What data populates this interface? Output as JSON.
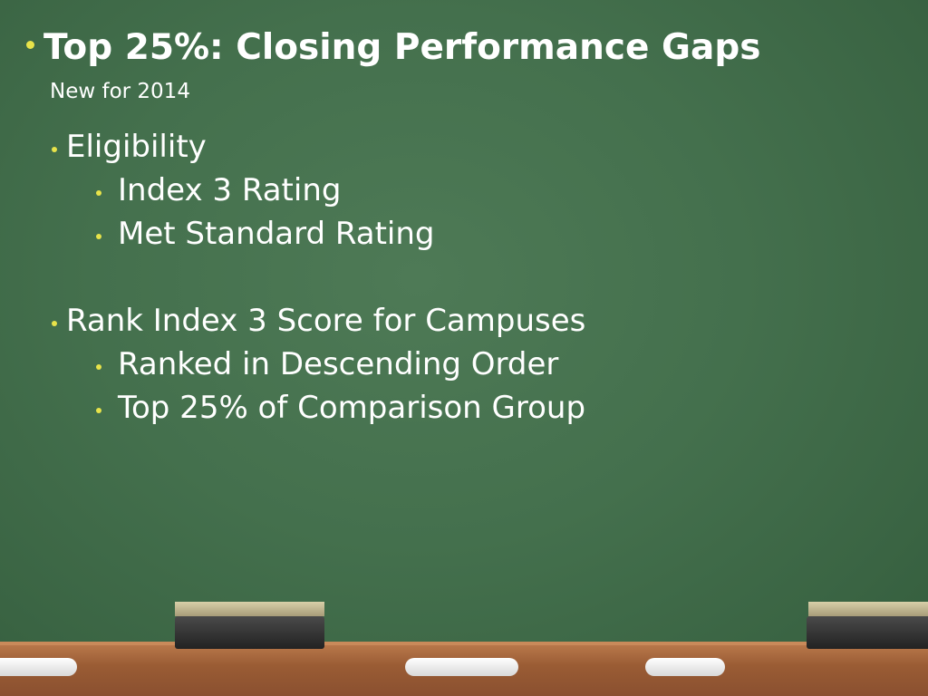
{
  "title": "Top 25%:  Closing Performance Gaps",
  "subtitle": "New for 2014",
  "bullets": [
    {
      "text": "Eligibility",
      "items": [
        "Index 3 Rating",
        "Met Standard Rating"
      ]
    },
    {
      "text": "Rank Index 3 Score for Campuses",
      "items": [
        "Ranked in Descending Order",
        "Top 25% of Comparison Group"
      ]
    }
  ]
}
